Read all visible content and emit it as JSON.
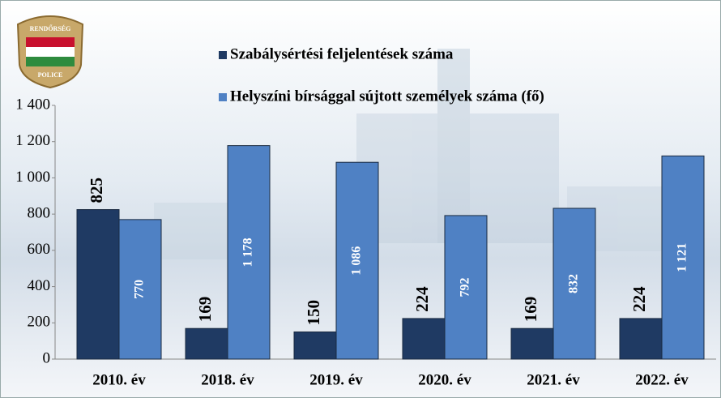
{
  "logo": {
    "top": "RENDŐRSÉG",
    "bottom": "POLICE"
  },
  "chart_data": {
    "type": "bar",
    "categories": [
      "2010. év",
      "2018. év",
      "2019. év",
      "2020. év",
      "2021. év",
      "2022. év"
    ],
    "series": [
      {
        "name": "Szabálysértési feljelentések száma",
        "color": "#1f3a63",
        "values": [
          825,
          169,
          150,
          224,
          169,
          224
        ]
      },
      {
        "name": "Helyszíni bírsággal sújtott személyek száma (fő)",
        "color": "#4f81c4",
        "values": [
          770,
          1178,
          1086,
          792,
          832,
          1121
        ],
        "value_labels": [
          "770",
          "1 178",
          "1 086",
          "792",
          "832",
          "1 121"
        ]
      }
    ],
    "ylim": [
      0,
      1400
    ],
    "yticks": [
      0,
      200,
      400,
      600,
      800,
      {
        "value": 1000,
        "label": "1 000"
      },
      {
        "value": 1200,
        "label": "1 200"
      },
      {
        "value": 1400,
        "label": "1 400"
      }
    ],
    "grid": false,
    "legend": "top"
  }
}
